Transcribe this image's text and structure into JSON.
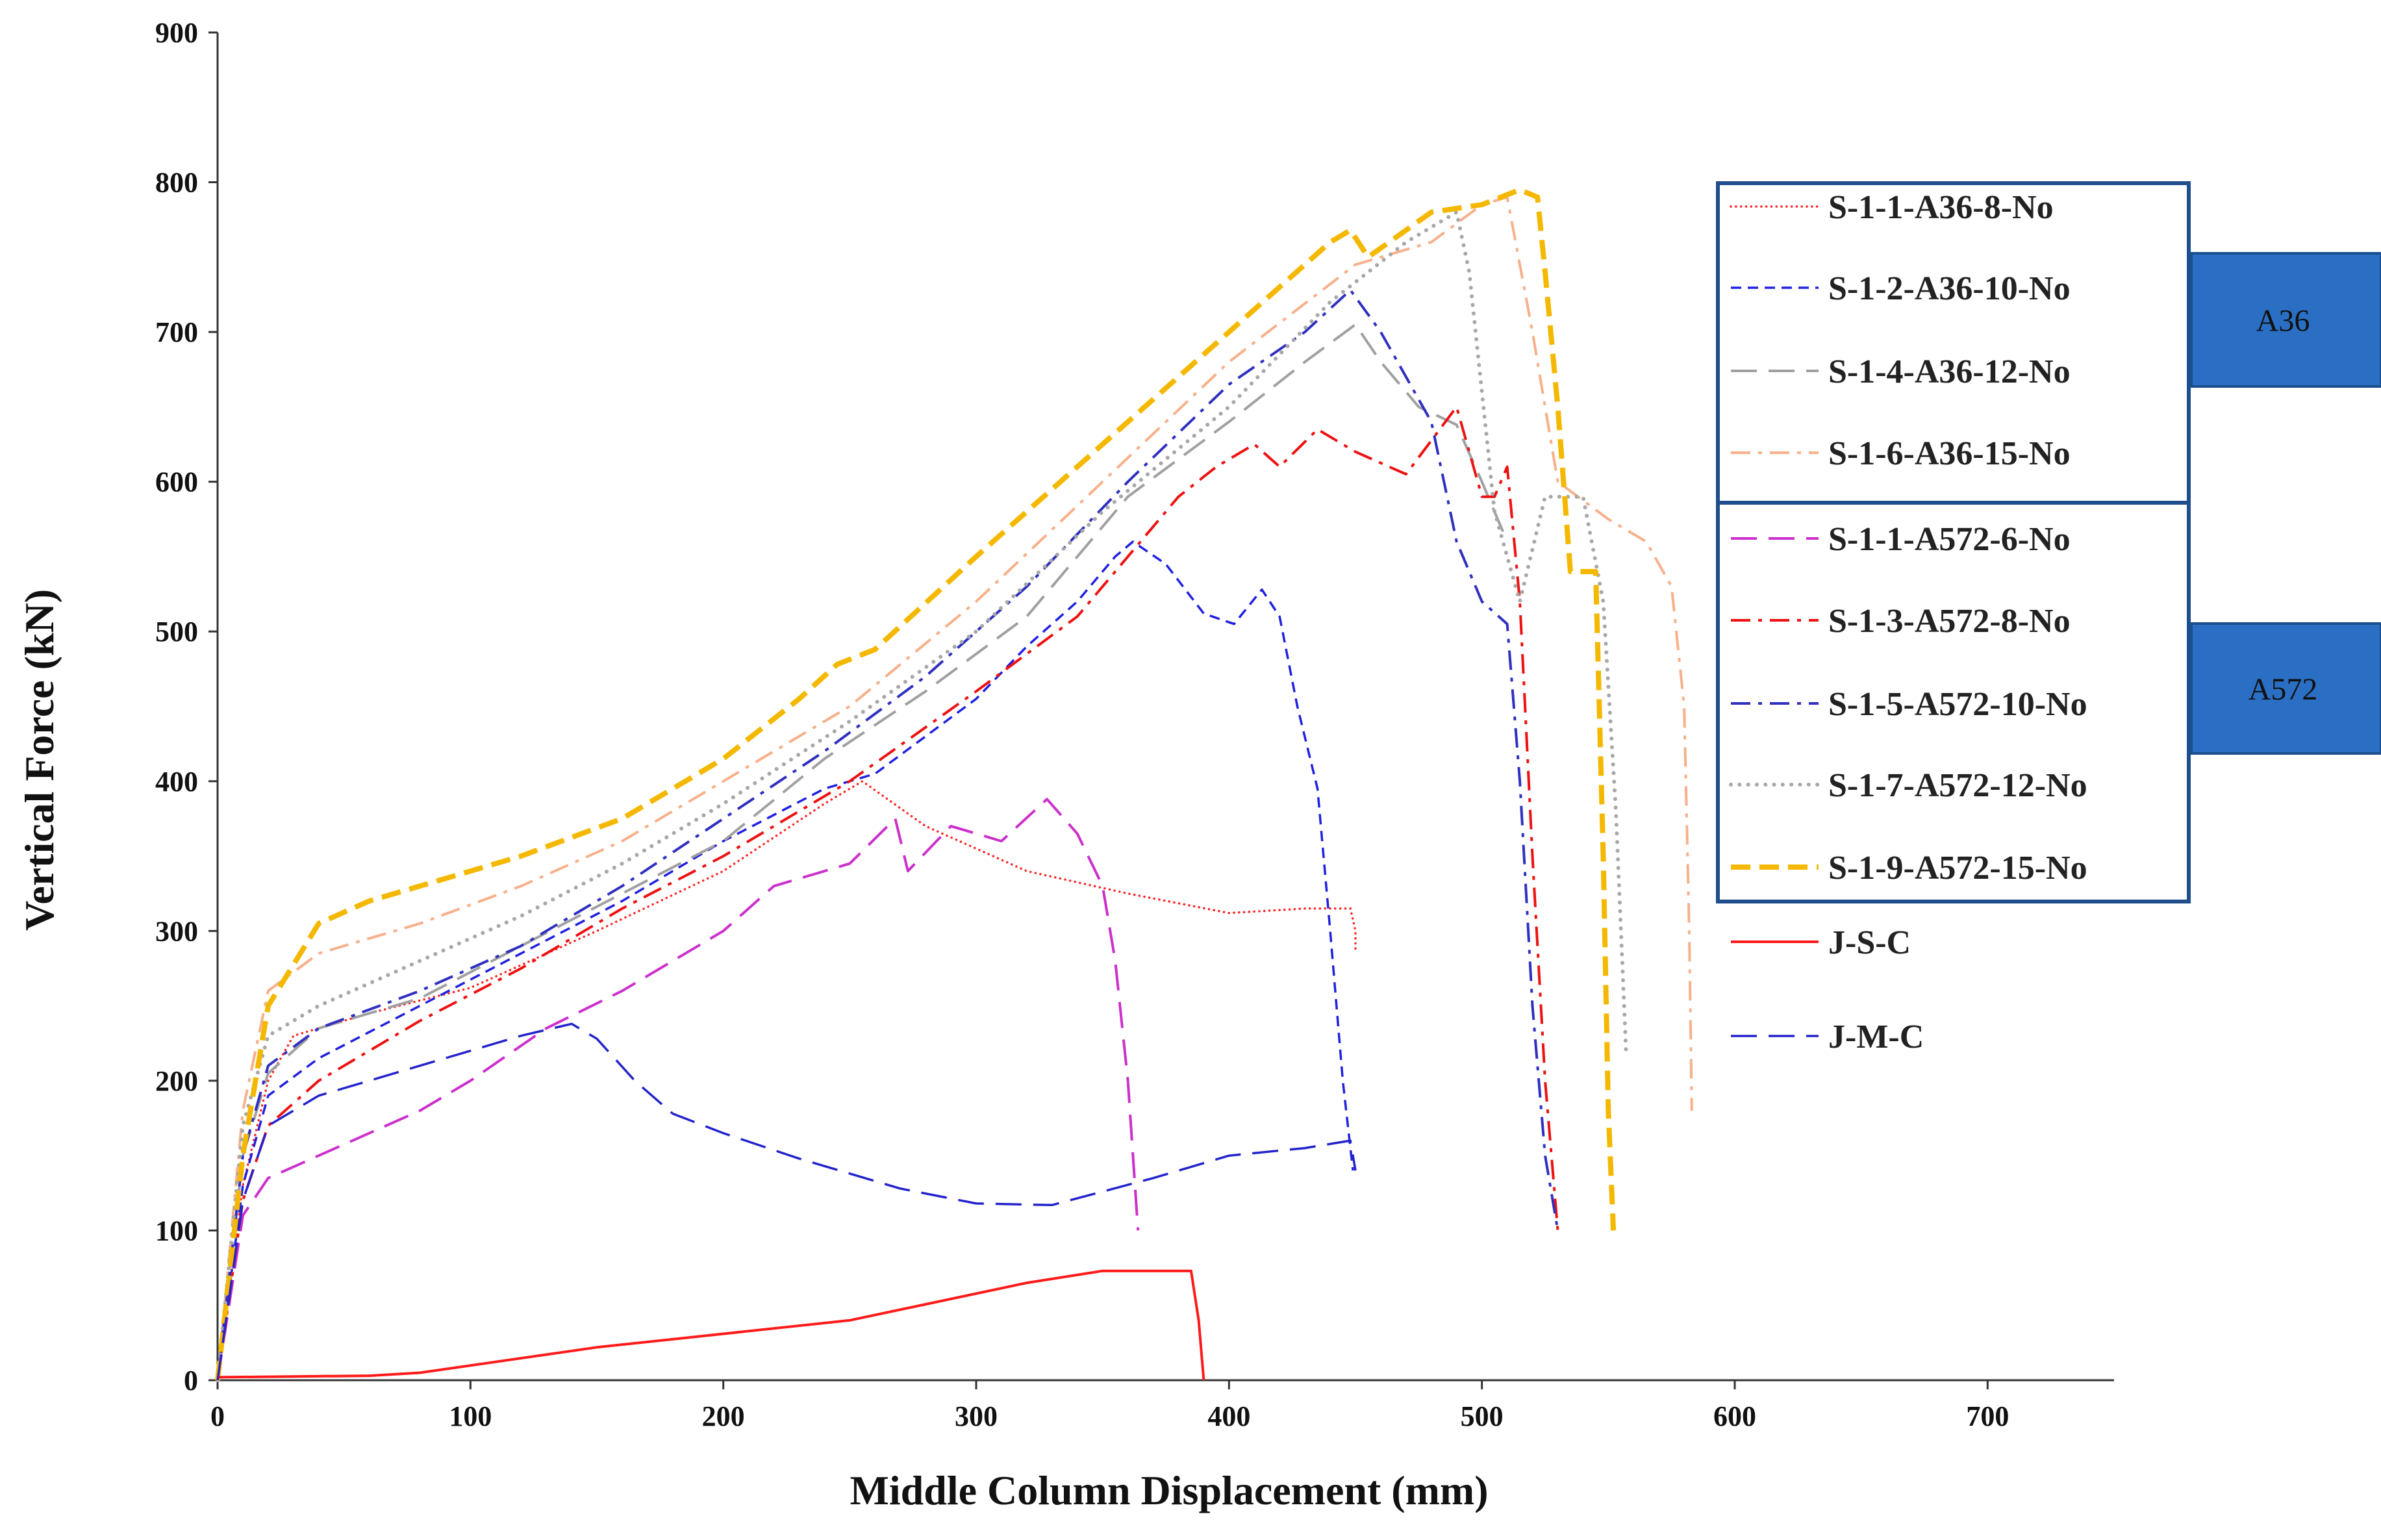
{
  "chart_data": {
    "type": "line",
    "title": "",
    "xlabel": "Middle Column Displacement (mm)",
    "ylabel": "Vertical Force (kN)",
    "xlim": [
      0,
      750
    ],
    "ylim": [
      0,
      900
    ],
    "x_ticks": [
      "0",
      "100",
      "200",
      "300",
      "400",
      "500",
      "600",
      "700"
    ],
    "y_ticks": [
      "0",
      "100",
      "200",
      "300",
      "400",
      "500",
      "600",
      "700",
      "800",
      "900"
    ],
    "legend_groups": [
      {
        "label": "A36",
        "color": "#2a6fc4",
        "series": [
          0,
          1,
          2,
          3
        ]
      },
      {
        "label": "A572",
        "color": "#2a6fc4",
        "series": [
          4,
          5,
          6,
          7,
          8
        ]
      }
    ],
    "series": [
      {
        "name": "S-1-1-A36-8-No",
        "color": "#ff2020",
        "dash": "dotted",
        "width": 3.5,
        "points": [
          [
            0,
            0
          ],
          [
            10,
            130
          ],
          [
            20,
            200
          ],
          [
            30,
            230
          ],
          [
            60,
            245
          ],
          [
            100,
            262
          ],
          [
            150,
            300
          ],
          [
            200,
            340
          ],
          [
            240,
            385
          ],
          [
            255,
            400
          ],
          [
            280,
            370
          ],
          [
            320,
            340
          ],
          [
            360,
            325
          ],
          [
            400,
            312
          ],
          [
            430,
            315
          ],
          [
            448,
            315
          ],
          [
            450,
            300
          ],
          [
            450,
            285
          ]
        ]
      },
      {
        "name": "S-1-2-A36-10-No",
        "color": "#2020e0",
        "dash": "short-dash",
        "width": 3.5,
        "points": [
          [
            0,
            0
          ],
          [
            10,
            130
          ],
          [
            20,
            190
          ],
          [
            40,
            215
          ],
          [
            80,
            250
          ],
          [
            120,
            285
          ],
          [
            160,
            320
          ],
          [
            200,
            360
          ],
          [
            240,
            395
          ],
          [
            260,
            405
          ],
          [
            300,
            455
          ],
          [
            320,
            490
          ],
          [
            340,
            520
          ],
          [
            355,
            550
          ],
          [
            362,
            560
          ],
          [
            375,
            545
          ],
          [
            390,
            512
          ],
          [
            402,
            505
          ],
          [
            413,
            528
          ],
          [
            420,
            510
          ],
          [
            427,
            450
          ],
          [
            435,
            395
          ],
          [
            440,
            300
          ],
          [
            445,
            200
          ],
          [
            449,
            140
          ]
        ]
      },
      {
        "name": "S-1-4-A36-12-No",
        "color": "#a0a0a0",
        "dash": "long-dash",
        "width": 4,
        "points": [
          [
            0,
            0
          ],
          [
            10,
            150
          ],
          [
            20,
            205
          ],
          [
            40,
            235
          ],
          [
            80,
            255
          ],
          [
            120,
            290
          ],
          [
            160,
            325
          ],
          [
            200,
            360
          ],
          [
            240,
            415
          ],
          [
            280,
            460
          ],
          [
            320,
            510
          ],
          [
            360,
            590
          ],
          [
            400,
            640
          ],
          [
            430,
            680
          ],
          [
            450,
            705
          ],
          [
            460,
            680
          ],
          [
            475,
            650
          ],
          [
            490,
            638
          ],
          [
            500,
            600
          ],
          [
            510,
            560
          ]
        ]
      },
      {
        "name": "S-1-6-A36-15-No",
        "color": "#f7b08a",
        "dash": "dash-dot",
        "width": 4,
        "points": [
          [
            0,
            0
          ],
          [
            10,
            180
          ],
          [
            20,
            260
          ],
          [
            40,
            285
          ],
          [
            80,
            305
          ],
          [
            120,
            330
          ],
          [
            160,
            360
          ],
          [
            200,
            400
          ],
          [
            250,
            450
          ],
          [
            300,
            520
          ],
          [
            350,
            600
          ],
          [
            400,
            680
          ],
          [
            450,
            745
          ],
          [
            480,
            760
          ],
          [
            500,
            785
          ],
          [
            510,
            790
          ],
          [
            520,
            700
          ],
          [
            530,
            600
          ],
          [
            550,
            575
          ],
          [
            565,
            560
          ],
          [
            575,
            530
          ],
          [
            580,
            450
          ],
          [
            582,
            300
          ],
          [
            583,
            180
          ]
        ]
      },
      {
        "name": "S-1-1-A572-6-No",
        "color": "#cc30cc",
        "dash": "long-dash",
        "width": 4,
        "points": [
          [
            0,
            0
          ],
          [
            10,
            110
          ],
          [
            20,
            135
          ],
          [
            40,
            150
          ],
          [
            80,
            180
          ],
          [
            100,
            200
          ],
          [
            130,
            235
          ],
          [
            160,
            260
          ],
          [
            200,
            300
          ],
          [
            220,
            330
          ],
          [
            250,
            345
          ],
          [
            268,
            375
          ],
          [
            273,
            340
          ],
          [
            290,
            370
          ],
          [
            310,
            360
          ],
          [
            328,
            388
          ],
          [
            340,
            365
          ],
          [
            350,
            330
          ],
          [
            355,
            280
          ],
          [
            360,
            200
          ],
          [
            362,
            150
          ],
          [
            364,
            100
          ]
        ]
      },
      {
        "name": "S-1-3-A572-8-No",
        "color": "#ee1111",
        "dash": "dash-dot",
        "width": 4,
        "points": [
          [
            0,
            0
          ],
          [
            10,
            120
          ],
          [
            20,
            170
          ],
          [
            40,
            200
          ],
          [
            80,
            240
          ],
          [
            120,
            275
          ],
          [
            160,
            315
          ],
          [
            200,
            350
          ],
          [
            250,
            400
          ],
          [
            300,
            460
          ],
          [
            340,
            510
          ],
          [
            360,
            550
          ],
          [
            380,
            590
          ],
          [
            395,
            610
          ],
          [
            410,
            625
          ],
          [
            420,
            610
          ],
          [
            435,
            635
          ],
          [
            450,
            620
          ],
          [
            470,
            605
          ],
          [
            490,
            650
          ],
          [
            500,
            590
          ],
          [
            505,
            590
          ],
          [
            510,
            610
          ],
          [
            515,
            520
          ],
          [
            520,
            350
          ],
          [
            525,
            200
          ],
          [
            530,
            100
          ]
        ]
      },
      {
        "name": "S-1-5-A572-10-No",
        "color": "#3030c0",
        "dash": "dash-dot",
        "width": 4,
        "points": [
          [
            0,
            0
          ],
          [
            10,
            150
          ],
          [
            20,
            210
          ],
          [
            40,
            235
          ],
          [
            80,
            260
          ],
          [
            120,
            290
          ],
          [
            160,
            330
          ],
          [
            200,
            375
          ],
          [
            240,
            420
          ],
          [
            280,
            470
          ],
          [
            320,
            530
          ],
          [
            360,
            600
          ],
          [
            400,
            665
          ],
          [
            430,
            700
          ],
          [
            448,
            728
          ],
          [
            460,
            700
          ],
          [
            480,
            640
          ],
          [
            490,
            560
          ],
          [
            500,
            520
          ],
          [
            510,
            505
          ],
          [
            515,
            400
          ],
          [
            520,
            250
          ],
          [
            525,
            150
          ],
          [
            530,
            100
          ]
        ]
      },
      {
        "name": "S-1-7-A572-12-No",
        "color": "#a8a8a8",
        "dash": "dotted",
        "width": 6,
        "points": [
          [
            0,
            0
          ],
          [
            10,
            170
          ],
          [
            20,
            230
          ],
          [
            40,
            250
          ],
          [
            80,
            280
          ],
          [
            120,
            310
          ],
          [
            160,
            345
          ],
          [
            200,
            385
          ],
          [
            250,
            440
          ],
          [
            300,
            500
          ],
          [
            350,
            580
          ],
          [
            400,
            650
          ],
          [
            440,
            720
          ],
          [
            470,
            760
          ],
          [
            490,
            780
          ],
          [
            495,
            740
          ],
          [
            505,
            580
          ],
          [
            515,
            520
          ],
          [
            525,
            590
          ],
          [
            540,
            590
          ],
          [
            548,
            520
          ],
          [
            553,
            380
          ],
          [
            557,
            220
          ]
        ]
      },
      {
        "name": "S-1-9-A572-15-No",
        "color": "#f5b800",
        "dash": "heavy-dash",
        "width": 8,
        "points": [
          [
            0,
            0
          ],
          [
            10,
            150
          ],
          [
            20,
            250
          ],
          [
            40,
            305
          ],
          [
            60,
            320
          ],
          [
            80,
            330
          ],
          [
            120,
            350
          ],
          [
            160,
            375
          ],
          [
            200,
            415
          ],
          [
            230,
            455
          ],
          [
            245,
            478
          ],
          [
            260,
            488
          ],
          [
            300,
            550
          ],
          [
            350,
            625
          ],
          [
            400,
            700
          ],
          [
            440,
            760
          ],
          [
            448,
            768
          ],
          [
            455,
            750
          ],
          [
            480,
            780
          ],
          [
            500,
            785
          ],
          [
            515,
            795
          ],
          [
            522,
            790
          ],
          [
            525,
            740
          ],
          [
            530,
            650
          ],
          [
            535,
            540
          ],
          [
            545,
            540
          ],
          [
            548,
            350
          ],
          [
            550,
            180
          ],
          [
            552,
            100
          ]
        ]
      },
      {
        "name": "J-S-C",
        "color": "#ff1a1a",
        "dash": "solid",
        "width": 4,
        "points": [
          [
            0,
            2
          ],
          [
            60,
            3
          ],
          [
            80,
            5
          ],
          [
            150,
            22
          ],
          [
            250,
            40
          ],
          [
            320,
            65
          ],
          [
            350,
            73
          ],
          [
            385,
            73
          ],
          [
            388,
            40
          ],
          [
            390,
            0
          ]
        ]
      },
      {
        "name": "J-M-C",
        "color": "#2323cc",
        "dash": "long-dash",
        "width": 3.5,
        "points": [
          [
            0,
            0
          ],
          [
            10,
            120
          ],
          [
            20,
            170
          ],
          [
            40,
            190
          ],
          [
            80,
            210
          ],
          [
            120,
            230
          ],
          [
            140,
            238
          ],
          [
            150,
            228
          ],
          [
            165,
            200
          ],
          [
            180,
            178
          ],
          [
            200,
            165
          ],
          [
            230,
            148
          ],
          [
            270,
            128
          ],
          [
            300,
            118
          ],
          [
            330,
            117
          ],
          [
            370,
            135
          ],
          [
            400,
            150
          ],
          [
            430,
            155
          ],
          [
            448,
            160
          ],
          [
            450,
            140
          ]
        ]
      }
    ]
  }
}
